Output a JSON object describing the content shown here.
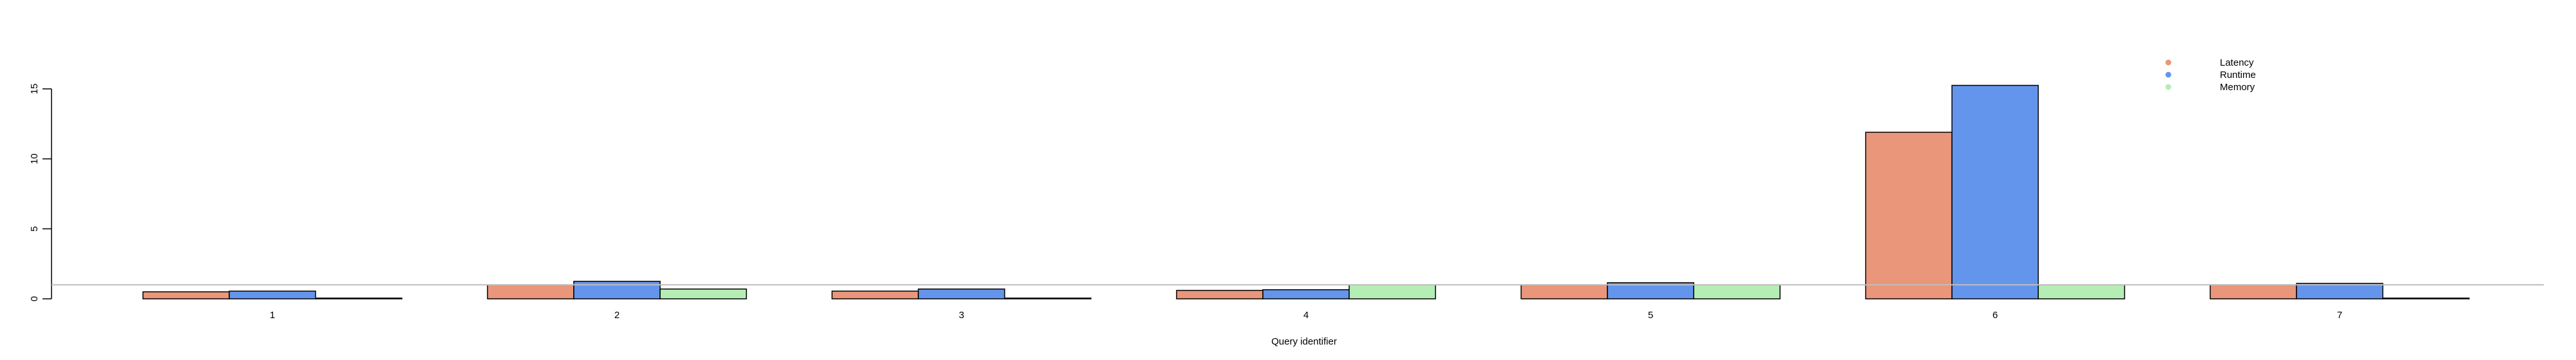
{
  "chart_data": {
    "type": "bar",
    "title": "",
    "xlabel": "Query identifier",
    "ylabel": "",
    "categories": [
      "1",
      "2",
      "3",
      "4",
      "5",
      "6",
      "7"
    ],
    "series": [
      {
        "name": "Latency",
        "color": "#E9967A",
        "values": [
          0.5,
          1.0,
          0.55,
          0.6,
          1.0,
          11.9,
          1.0
        ]
      },
      {
        "name": "Runtime",
        "color": "#6495ED",
        "values": [
          0.55,
          1.25,
          0.7,
          0.65,
          1.15,
          15.25,
          1.1
        ]
      },
      {
        "name": "Memory",
        "color": "#B4EEB4",
        "values": [
          0.05,
          0.7,
          0.05,
          1.0,
          1.0,
          1.0,
          0.05
        ]
      }
    ],
    "ylim": [
      0,
      15
    ],
    "yticks": [
      "0",
      "5",
      "10",
      "15"
    ],
    "reference_line": 1,
    "grid": false,
    "legend_position": "top-right"
  }
}
